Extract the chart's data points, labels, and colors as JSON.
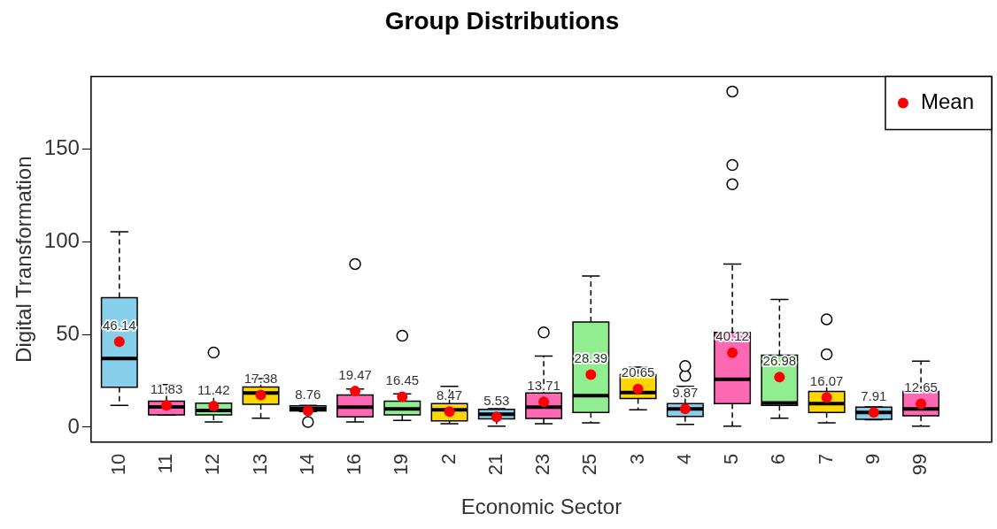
{
  "chart_data": {
    "type": "box",
    "title": "Group Distributions",
    "xlabel": "Economic Sector",
    "ylabel": "Digital Transformation",
    "categories": [
      "10",
      "11",
      "12",
      "13",
      "14",
      "16",
      "19",
      "2",
      "21",
      "23",
      "25",
      "3",
      "4",
      "5",
      "6",
      "7",
      "9",
      "99"
    ],
    "colors": [
      "#87ceeb",
      "#ff69b4",
      "#90ee90",
      "#ffd700",
      "#87ceeb",
      "#ff69b4",
      "#90ee90",
      "#ffd700",
      "#87ceeb",
      "#ff69b4",
      "#90ee90",
      "#ffd700",
      "#87ceeb",
      "#ff69b4",
      "#90ee90",
      "#ffd700",
      "#87ceeb",
      "#ff69b4"
    ],
    "boxes": [
      {
        "low": 11.8,
        "q1": 21.5,
        "median": 37,
        "q3": 69.8,
        "high": 105.4
      },
      {
        "low": 6.5,
        "q1": 6.7,
        "median": 11,
        "q3": 14,
        "high": 23
      },
      {
        "low": 2.8,
        "q1": 6.7,
        "median": 9,
        "q3": 13,
        "high": 18.5,
        "outliers": [
          40.3
        ]
      },
      {
        "low": 4.9,
        "q1": 12.4,
        "median": 18.4,
        "q3": 21.7,
        "high": 26.2
      },
      {
        "low": 8.5,
        "q1": 8.8,
        "median": 10,
        "q3": 11.5,
        "high": 11.8,
        "outliers": [
          2.8
        ]
      },
      {
        "low": 2.8,
        "q1": 5.6,
        "median": 10.8,
        "q3": 17.4,
        "high": 20.6,
        "outliers": [
          88
        ]
      },
      {
        "low": 3.7,
        "q1": 6.7,
        "median": 9.9,
        "q3": 14,
        "high": 18,
        "outliers": [
          49.3
        ]
      },
      {
        "low": 1.9,
        "q1": 3.4,
        "median": 9.4,
        "q3": 12.7,
        "high": 22
      },
      {
        "low": 0.6,
        "q1": 4.5,
        "median": 7,
        "q3": 9.6,
        "high": 10
      },
      {
        "low": 1.9,
        "q1": 4.7,
        "median": 10.8,
        "q3": 18.4,
        "high": 38.4,
        "outliers": [
          51.1
        ]
      },
      {
        "low": 2.4,
        "q1": 8,
        "median": 17,
        "q3": 56.7,
        "high": 81.5
      },
      {
        "low": 9.4,
        "q1": 15.5,
        "median": 18.7,
        "q3": 28.3,
        "high": 32.4
      },
      {
        "low": 1.5,
        "q1": 5.8,
        "median": 9.9,
        "q3": 12.7,
        "high": 22,
        "outliers": [
          27.7,
          33
        ]
      },
      {
        "low": 0.6,
        "q1": 12.7,
        "median": 25.8,
        "q3": 51.1,
        "high": 88,
        "outliers": [
          131,
          141.4,
          181
        ]
      },
      {
        "low": 4.9,
        "q1": 11.8,
        "median": 13.1,
        "q3": 38.9,
        "high": 68.9
      },
      {
        "low": 2.4,
        "q1": 8,
        "median": 12.7,
        "q3": 19.3,
        "high": 23,
        "outliers": [
          39.3,
          58.2
        ]
      },
      {
        "low": 4,
        "q1": 4.3,
        "median": 8,
        "q3": 10.8,
        "high": 11
      },
      {
        "low": 0.6,
        "q1": 6.2,
        "median": 9.9,
        "q3": 19.3,
        "high": 35.6
      }
    ],
    "series": [
      {
        "name": "Mean",
        "type": "scatter",
        "color": "#ff0000",
        "x": [
          "10",
          "11",
          "12",
          "13",
          "14",
          "16",
          "19",
          "2",
          "21",
          "23",
          "25",
          "3",
          "4",
          "5",
          "6",
          "7",
          "9",
          "99"
        ],
        "values": [
          46.14,
          11.83,
          11.42,
          17.38,
          8.76,
          19.47,
          16.45,
          8.47,
          5.53,
          13.71,
          28.39,
          20.65,
          9.87,
          40.12,
          26.98,
          16.07,
          7.91,
          12.65
        ],
        "value_labels": [
          "46.14",
          "11.83",
          "11.42",
          "17.38",
          "8.76",
          "19.47",
          "16.45",
          "8.47",
          "5.53",
          "13.71",
          "28.39",
          "20.65",
          "9.87",
          "40.12",
          "26.98",
          "16.07",
          "7.91",
          "12.65"
        ]
      }
    ],
    "ylim": [
      -8,
      189
    ],
    "yticks": [
      0,
      50,
      100,
      150
    ],
    "grid": false,
    "legend": "top right",
    "marker": "circle"
  }
}
